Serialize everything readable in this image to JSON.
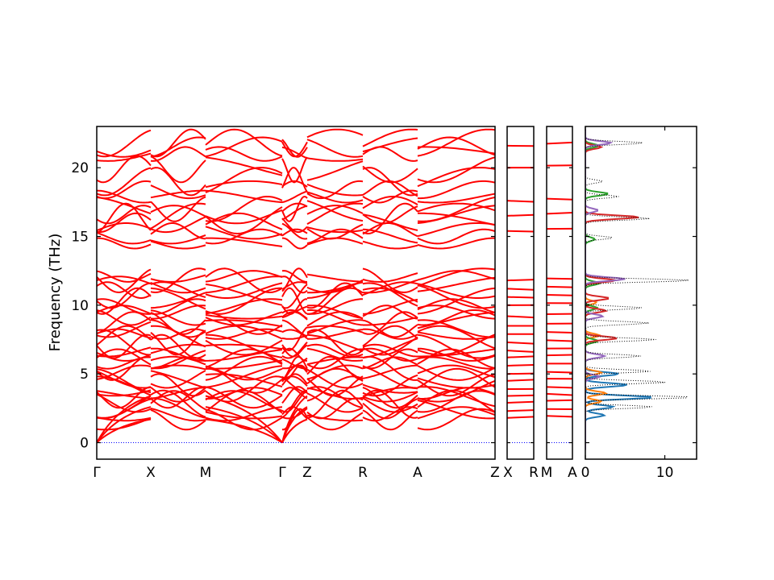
{
  "chart_data": {
    "type": "line",
    "title": "",
    "ylabel": "Frequency (THz)",
    "ylim": [
      -1.2,
      23.0
    ],
    "yticks": [
      0,
      5,
      10,
      15,
      20
    ],
    "line_color": "#ff0000",
    "zero_line_color": "#0000ff",
    "panels": [
      {
        "name": "band-panel-main",
        "segments": [
          {
            "from": "Γ",
            "to": "X"
          },
          {
            "from": "X",
            "to": "M"
          },
          {
            "from": "M",
            "to": "Γ"
          },
          {
            "from": "Z",
            "to": "R"
          },
          {
            "from": "R",
            "to": "A"
          },
          {
            "from": "A",
            "to": "Z"
          }
        ],
        "tick_labels": [
          "Γ",
          "X",
          "M",
          "Γ",
          "Z",
          "R",
          "A",
          "Z"
        ]
      },
      {
        "name": "band-panel-x-r",
        "tick_labels": [
          "X",
          "R"
        ]
      },
      {
        "name": "band-panel-m-a",
        "tick_labels": [
          "M",
          "A"
        ]
      }
    ],
    "dos_panel": {
      "xlim": [
        0,
        14
      ],
      "xticks": [
        0,
        10
      ],
      "series": [
        {
          "color": "#1f77b4",
          "peaks": [
            [
              2.6,
              3.5
            ],
            [
              3.3,
              8.6
            ],
            [
              4.2,
              5.3
            ],
            [
              5.0,
              4.2
            ],
            [
              2.0,
              2.4
            ]
          ]
        },
        {
          "color": "#ff7f0e",
          "peaks": [
            [
              3.6,
              2.6
            ],
            [
              5.1,
              2.0
            ],
            [
              7.8,
              1.8
            ],
            [
              10.2,
              1.4
            ],
            [
              3.0,
              2.0
            ]
          ]
        },
        {
          "color": "#2ca02c",
          "peaks": [
            [
              7.4,
              1.6
            ],
            [
              9.8,
              1.5
            ],
            [
              11.6,
              1.8
            ],
            [
              18.1,
              2.9
            ],
            [
              21.6,
              1.7
            ],
            [
              14.8,
              1.2
            ]
          ]
        },
        {
          "color": "#d62728",
          "peaks": [
            [
              11.8,
              3.8
            ],
            [
              7.6,
              4.0
            ],
            [
              9.6,
              2.6
            ],
            [
              10.5,
              3.0
            ],
            [
              16.4,
              6.8
            ],
            [
              21.5,
              2.0
            ]
          ]
        },
        {
          "color": "#9467bd",
          "peaks": [
            [
              11.9,
              5.0
            ],
            [
              9.2,
              2.2
            ],
            [
              6.3,
              2.4
            ],
            [
              4.8,
              1.8
            ],
            [
              21.8,
              3.2
            ],
            [
              16.9,
              1.6
            ]
          ]
        }
      ],
      "total": {
        "color": "#000000",
        "style": "dotted",
        "peaks": [
          [
            3.3,
            13.6
          ],
          [
            2.6,
            8.5
          ],
          [
            4.4,
            10.2
          ],
          [
            5.2,
            8.3
          ],
          [
            6.3,
            7.0
          ],
          [
            7.5,
            8.9
          ],
          [
            8.7,
            8.0
          ],
          [
            9.8,
            7.2
          ],
          [
            11.8,
            13.2
          ],
          [
            16.3,
            8.1
          ],
          [
            17.9,
            4.2
          ],
          [
            21.8,
            7.3
          ],
          [
            14.9,
            3.5
          ],
          [
            19.0,
            2.2
          ]
        ]
      }
    }
  }
}
